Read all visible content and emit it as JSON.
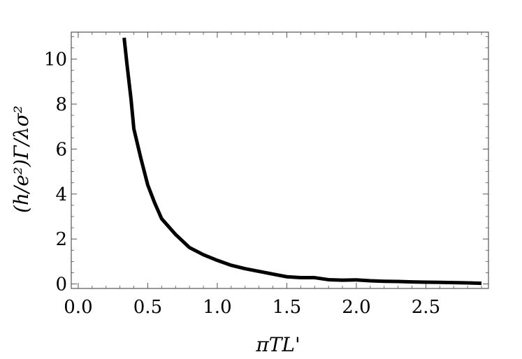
{
  "chart_data": {
    "type": "line",
    "xlabel": "πTL'",
    "ylabel": "(h/e²)Γ/λσ²",
    "xlim": [
      -0.05,
      2.95
    ],
    "ylim": [
      -0.2,
      11.2
    ],
    "grid": false,
    "x_ticks": [
      {
        "value": 0.0,
        "label": "0.0"
      },
      {
        "value": 0.5,
        "label": "0.5"
      },
      {
        "value": 1.0,
        "label": "1.0"
      },
      {
        "value": 1.5,
        "label": "1.5"
      },
      {
        "value": 2.0,
        "label": "2.0"
      },
      {
        "value": 2.5,
        "label": "2.5"
      }
    ],
    "y_ticks": [
      {
        "value": 0,
        "label": "0"
      },
      {
        "value": 2,
        "label": "2"
      },
      {
        "value": 4,
        "label": "4"
      },
      {
        "value": 6,
        "label": "6"
      },
      {
        "value": 8,
        "label": "8"
      },
      {
        "value": 10,
        "label": "10"
      }
    ],
    "series": [
      {
        "color": "#000000",
        "x": [
          0.33,
          0.35,
          0.38,
          0.4,
          0.45,
          0.5,
          0.55,
          0.6,
          0.7,
          0.8,
          0.9,
          1.0,
          1.1,
          1.2,
          1.3,
          1.4,
          1.5,
          1.6,
          1.7,
          1.8,
          1.9,
          2.0,
          2.1,
          2.2,
          2.3,
          2.4,
          2.5,
          2.6,
          2.7,
          2.8,
          2.9
        ],
        "y": [
          10.95,
          9.8,
          8.2,
          6.9,
          5.6,
          4.4,
          3.6,
          2.9,
          2.2,
          1.62,
          1.3,
          1.05,
          0.83,
          0.68,
          0.56,
          0.44,
          0.32,
          0.28,
          0.28,
          0.19,
          0.17,
          0.18,
          0.14,
          0.12,
          0.11,
          0.09,
          0.08,
          0.07,
          0.06,
          0.05,
          0.03
        ]
      }
    ]
  }
}
